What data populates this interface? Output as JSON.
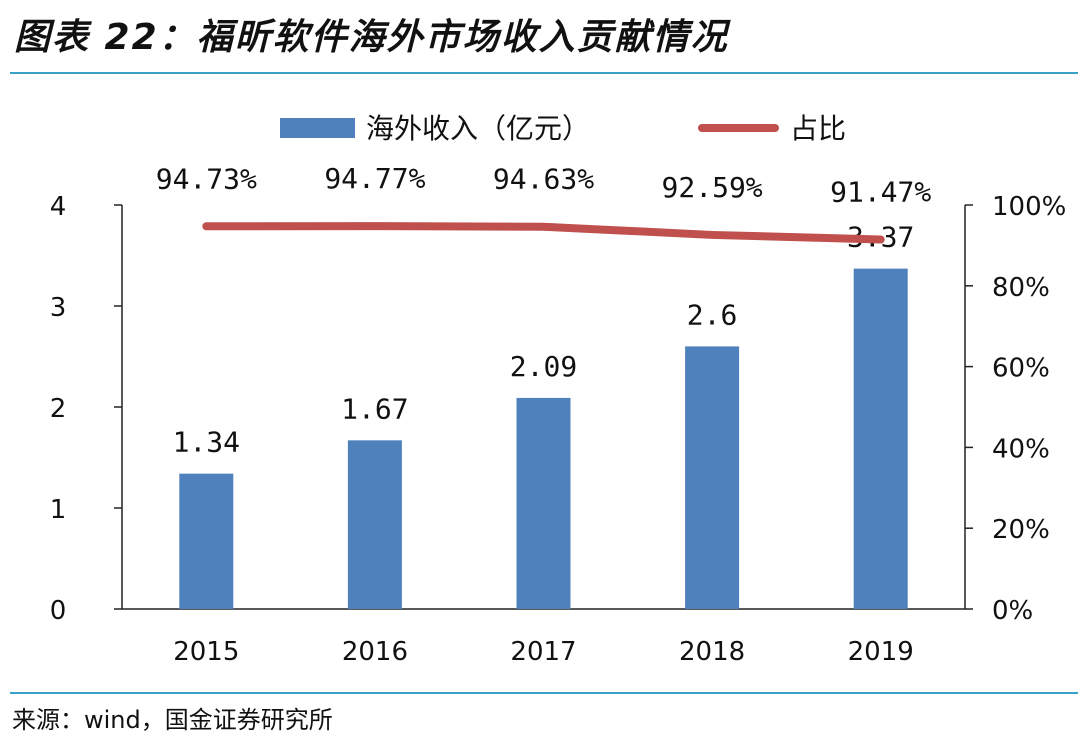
{
  "page": {
    "title": "图表 22：福昕软件海外市场收入贡献情况",
    "source": "来源：wind，国金证券研究所"
  },
  "chart_data": {
    "type": "bar+line",
    "categories": [
      "2015",
      "2016",
      "2017",
      "2018",
      "2019"
    ],
    "series": [
      {
        "name": "海外收入（亿元）",
        "type": "bar",
        "axis": "left",
        "values": [
          1.34,
          1.67,
          2.09,
          2.6,
          3.37
        ],
        "labels": [
          "1.34",
          "1.67",
          "2.09",
          "2.6",
          "3.37"
        ],
        "color": "#4f81bd"
      },
      {
        "name": "占比",
        "type": "line",
        "axis": "right",
        "values": [
          94.73,
          94.77,
          94.63,
          92.59,
          91.47
        ],
        "labels": [
          "94.73%",
          "94.77%",
          "94.63%",
          "92.59%",
          "91.47%"
        ],
        "color": "#c0504d"
      }
    ],
    "y_left": {
      "min": 0,
      "max": 4,
      "ticks": [
        "0",
        "1",
        "2",
        "3",
        "4"
      ],
      "tick_values": [
        0,
        1,
        2,
        3,
        4
      ]
    },
    "y_right": {
      "min": 0,
      "max": 100,
      "ticks": [
        "0%",
        "20%",
        "40%",
        "60%",
        "80%",
        "100%"
      ],
      "tick_values": [
        0,
        20,
        40,
        60,
        80,
        100
      ]
    },
    "legend": "top",
    "grid": false
  }
}
